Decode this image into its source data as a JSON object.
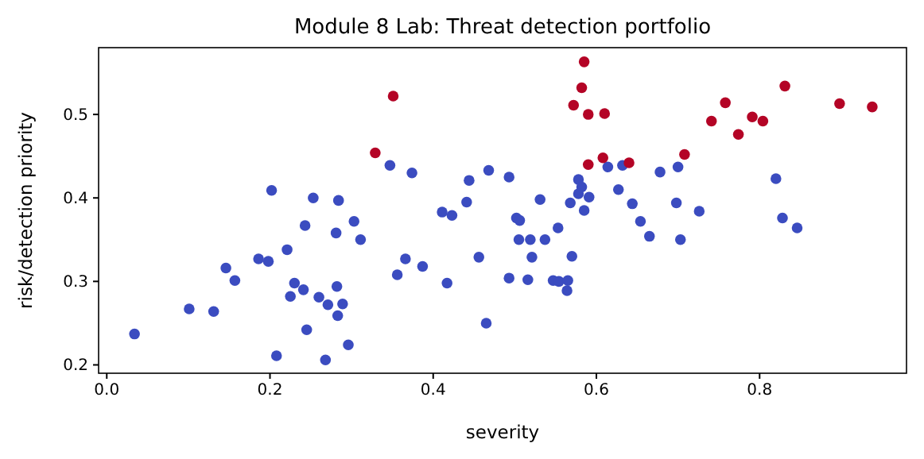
{
  "chart_data": {
    "type": "scatter",
    "title": "Module 8 Lab: Threat detection portfolio",
    "xlabel": "severity",
    "ylabel": "risk/detection priority",
    "xlim": [
      -0.01,
      0.98
    ],
    "ylim": [
      0.19,
      0.58
    ],
    "xticks": [
      {
        "value": 0,
        "label": "0.0"
      },
      0.2,
      0.4,
      0.6,
      0.8
    ],
    "yticks": [
      0.2,
      0.3,
      0.4,
      0.5
    ],
    "marker": "circle",
    "series": [
      {
        "color": "#3b4cc0",
        "x": [
          0.347,
          0.374,
          0.468,
          0.444,
          0.441,
          0.411,
          0.423,
          0.202,
          0.253,
          0.284,
          0.303,
          0.243,
          0.281,
          0.311,
          0.221,
          0.186,
          0.198,
          0.146,
          0.157,
          0.366,
          0.356,
          0.387,
          0.456,
          0.417,
          0.23,
          0.282,
          0.241,
          0.225,
          0.26,
          0.271,
          0.289,
          0.283,
          0.101,
          0.131,
          0.034,
          0.245,
          0.465,
          0.296,
          0.208,
          0.268,
          0.493,
          0.614,
          0.632,
          0.678,
          0.7,
          0.82,
          0.578,
          0.582,
          0.578,
          0.591,
          0.568,
          0.585,
          0.531,
          0.627,
          0.644,
          0.698,
          0.726,
          0.654,
          0.828,
          0.846,
          0.502,
          0.506,
          0.553,
          0.505,
          0.519,
          0.537,
          0.665,
          0.703,
          0.521,
          0.57,
          0.493,
          0.516,
          0.547,
          0.554,
          0.565,
          0.564
        ],
        "values": [
          0.439,
          0.43,
          0.433,
          0.421,
          0.395,
          0.383,
          0.379,
          0.409,
          0.4,
          0.397,
          0.372,
          0.367,
          0.358,
          0.35,
          0.338,
          0.327,
          0.324,
          0.316,
          0.301,
          0.327,
          0.308,
          0.318,
          0.329,
          0.298,
          0.298,
          0.294,
          0.29,
          0.282,
          0.281,
          0.272,
          0.273,
          0.259,
          0.267,
          0.264,
          0.237,
          0.242,
          0.25,
          0.224,
          0.211,
          0.206,
          0.425,
          0.437,
          0.439,
          0.431,
          0.437,
          0.423,
          0.422,
          0.413,
          0.405,
          0.401,
          0.394,
          0.385,
          0.398,
          0.41,
          0.393,
          0.394,
          0.384,
          0.372,
          0.376,
          0.364,
          0.376,
          0.373,
          0.364,
          0.35,
          0.35,
          0.35,
          0.354,
          0.35,
          0.329,
          0.33,
          0.304,
          0.302,
          0.301,
          0.3,
          0.301,
          0.289
        ]
      },
      {
        "color": "#b40426",
        "x": [
          0.351,
          0.329,
          0.585,
          0.582,
          0.572,
          0.59,
          0.61,
          0.608,
          0.59,
          0.64,
          0.708,
          0.741,
          0.758,
          0.774,
          0.791,
          0.804,
          0.831,
          0.898,
          0.938
        ],
        "values": [
          0.522,
          0.454,
          0.563,
          0.532,
          0.511,
          0.5,
          0.501,
          0.448,
          0.44,
          0.442,
          0.452,
          0.492,
          0.514,
          0.476,
          0.497,
          0.492,
          0.534,
          0.513,
          0.509
        ]
      }
    ]
  }
}
